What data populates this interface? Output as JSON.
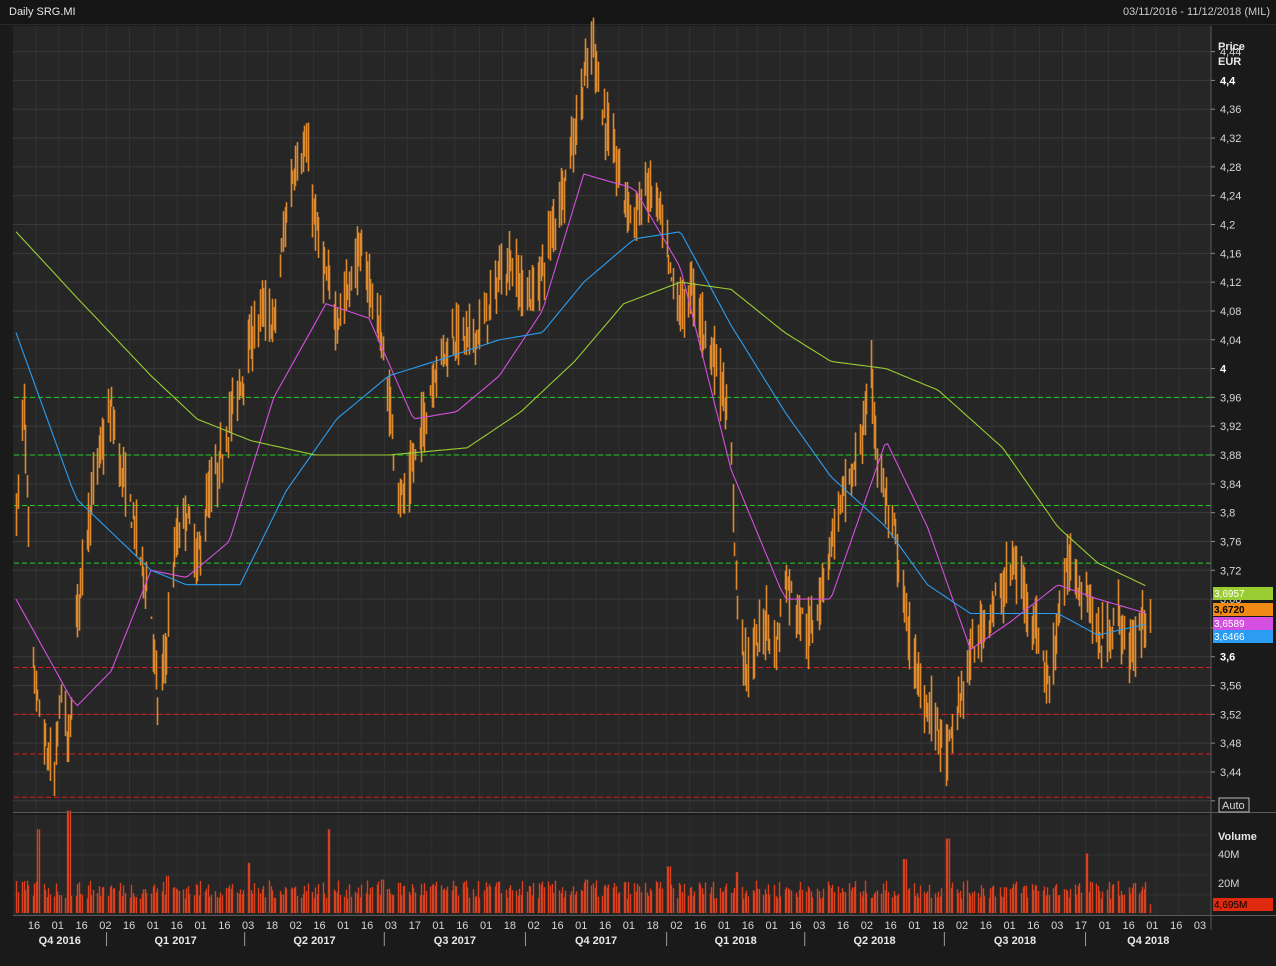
{
  "header": {
    "title": "Daily SRG.MI",
    "range": "03/11/2016 - 11/12/2018 (MIL)"
  },
  "price_axis": {
    "title_line1": "Price",
    "title_line2": "EUR",
    "auto_label": "Auto",
    "ticks": [
      "4,44",
      "4,4",
      "4,36",
      "4,32",
      "4,28",
      "4,24",
      "4,2",
      "4,16",
      "4,12",
      "4,08",
      "4,04",
      "4",
      "3,96",
      "3,92",
      "3,88",
      "3,84",
      "3,8",
      "3,76",
      "3,72",
      "3,68",
      "3,64",
      "3,6",
      "3,56",
      "3,52",
      "3,48",
      "3,44",
      "3,4"
    ],
    "bold_ticks": [
      "4,4",
      "4",
      "3,6"
    ]
  },
  "volume_axis": {
    "title": "Volume",
    "ticks": [
      "40M",
      "20M"
    ]
  },
  "time_axis": {
    "day_ticks": [
      "16",
      "01",
      "16",
      "02",
      "16",
      "01",
      "16",
      "01",
      "16",
      "03",
      "18",
      "02",
      "16",
      "01",
      "16",
      "03",
      "17",
      "01",
      "16",
      "01",
      "18",
      "02",
      "16",
      "01",
      "16",
      "01",
      "18",
      "02",
      "16",
      "01",
      "16",
      "01",
      "16",
      "03",
      "16",
      "02",
      "16",
      "01",
      "18",
      "02",
      "16",
      "01",
      "16",
      "03",
      "17",
      "01",
      "16",
      "01",
      "16",
      "03"
    ],
    "quarters": [
      "Q4 2016",
      "Q1 2017",
      "Q2 2017",
      "Q3 2017",
      "Q4 2017",
      "Q1 2018",
      "Q2 2018",
      "Q3 2018",
      "Q4 2018"
    ]
  },
  "colors": {
    "bars": "#e08a2e",
    "ma_short": "#d44fe0",
    "ma_mid": "#2a9df2",
    "ma_long": "#9acd32",
    "support": "#d42020",
    "resistance": "#22cc22",
    "volume": "#d8401e"
  },
  "chart_data": [
    {
      "type": "line",
      "subtype": "ohlc-bars",
      "title": "Daily SRG.MI",
      "date_range": "03/11/2016 - 11/12/2018",
      "currency": "EUR",
      "ylim": [
        3.39,
        4.47
      ],
      "price_path": [
        [
          "2016-11-03",
          3.8
        ],
        [
          "2016-11-08",
          3.95
        ],
        [
          "2016-11-14",
          3.58
        ],
        [
          "2016-11-21",
          3.48
        ],
        [
          "2016-11-28",
          3.43
        ],
        [
          "2016-12-02",
          3.56
        ],
        [
          "2016-12-07",
          3.47
        ],
        [
          "2016-12-12",
          3.65
        ],
        [
          "2016-12-19",
          3.78
        ],
        [
          "2016-12-27",
          3.88
        ],
        [
          "2017-01-04",
          3.94
        ],
        [
          "2017-01-10",
          3.86
        ],
        [
          "2017-01-17",
          3.8
        ],
        [
          "2017-01-23",
          3.74
        ],
        [
          "2017-01-30",
          3.66
        ],
        [
          "2017-02-03",
          3.53
        ],
        [
          "2017-02-08",
          3.6
        ],
        [
          "2017-02-15",
          3.76
        ],
        [
          "2017-02-22",
          3.8
        ],
        [
          "2017-03-01",
          3.73
        ],
        [
          "2017-03-08",
          3.82
        ],
        [
          "2017-03-15",
          3.86
        ],
        [
          "2017-03-22",
          3.93
        ],
        [
          "2017-03-29",
          3.98
        ],
        [
          "2017-04-05",
          4.04
        ],
        [
          "2017-04-12",
          4.08
        ],
        [
          "2017-04-20",
          4.06
        ],
        [
          "2017-04-28",
          4.22
        ],
        [
          "2017-05-04",
          4.29
        ],
        [
          "2017-05-11",
          4.3
        ],
        [
          "2017-05-17",
          4.2
        ],
        [
          "2017-05-24",
          4.12
        ],
        [
          "2017-05-31",
          4.07
        ],
        [
          "2017-06-07",
          4.11
        ],
        [
          "2017-06-14",
          4.16
        ],
        [
          "2017-06-21",
          4.12
        ],
        [
          "2017-06-28",
          4.05
        ],
        [
          "2017-07-04",
          3.95
        ],
        [
          "2017-07-10",
          3.84
        ],
        [
          "2017-07-14",
          3.81
        ],
        [
          "2017-07-20",
          3.87
        ],
        [
          "2017-07-27",
          3.93
        ],
        [
          "2017-08-03",
          4.0
        ],
        [
          "2017-08-10",
          4.03
        ],
        [
          "2017-08-17",
          4.05
        ],
        [
          "2017-08-24",
          4.04
        ],
        [
          "2017-08-31",
          4.05
        ],
        [
          "2017-09-07",
          4.08
        ],
        [
          "2017-09-14",
          4.13
        ],
        [
          "2017-09-21",
          4.15
        ],
        [
          "2017-09-28",
          4.11
        ],
        [
          "2017-10-05",
          4.1
        ],
        [
          "2017-10-12",
          4.14
        ],
        [
          "2017-10-19",
          4.2
        ],
        [
          "2017-10-26",
          4.26
        ],
        [
          "2017-11-02",
          4.33
        ],
        [
          "2017-11-08",
          4.4
        ],
        [
          "2017-11-14",
          4.45
        ],
        [
          "2017-11-20",
          4.36
        ],
        [
          "2017-11-27",
          4.3
        ],
        [
          "2017-12-04",
          4.24
        ],
        [
          "2017-12-11",
          4.21
        ],
        [
          "2017-12-18",
          4.25
        ],
        [
          "2017-12-26",
          4.23
        ],
        [
          "2018-01-03",
          4.13
        ],
        [
          "2018-01-10",
          4.08
        ],
        [
          "2018-01-17",
          4.11
        ],
        [
          "2018-01-24",
          4.06
        ],
        [
          "2018-01-31",
          4.02
        ],
        [
          "2018-02-07",
          3.97
        ],
        [
          "2018-02-12",
          3.86
        ],
        [
          "2018-02-16",
          3.67
        ],
        [
          "2018-02-22",
          3.58
        ],
        [
          "2018-03-01",
          3.62
        ],
        [
          "2018-03-07",
          3.65
        ],
        [
          "2018-03-13",
          3.61
        ],
        [
          "2018-03-19",
          3.71
        ],
        [
          "2018-03-26",
          3.67
        ],
        [
          "2018-04-04",
          3.63
        ],
        [
          "2018-04-11",
          3.69
        ],
        [
          "2018-04-18",
          3.76
        ],
        [
          "2018-04-25",
          3.82
        ],
        [
          "2018-05-02",
          3.85
        ],
        [
          "2018-05-09",
          3.92
        ],
        [
          "2018-05-14",
          3.99
        ],
        [
          "2018-05-18",
          3.88
        ],
        [
          "2018-05-24",
          3.81
        ],
        [
          "2018-05-30",
          3.76
        ],
        [
          "2018-06-06",
          3.65
        ],
        [
          "2018-06-13",
          3.57
        ],
        [
          "2018-06-20",
          3.53
        ],
        [
          "2018-06-27",
          3.5
        ],
        [
          "2018-07-02",
          3.46
        ],
        [
          "2018-07-06",
          3.49
        ],
        [
          "2018-07-12",
          3.55
        ],
        [
          "2018-07-18",
          3.6
        ],
        [
          "2018-07-25",
          3.64
        ],
        [
          "2018-08-01",
          3.67
        ],
        [
          "2018-08-08",
          3.69
        ],
        [
          "2018-08-14",
          3.73
        ],
        [
          "2018-08-20",
          3.7
        ],
        [
          "2018-08-27",
          3.66
        ],
        [
          "2018-09-03",
          3.6
        ],
        [
          "2018-09-07",
          3.55
        ],
        [
          "2018-09-13",
          3.66
        ],
        [
          "2018-09-20",
          3.73
        ],
        [
          "2018-09-27",
          3.7
        ],
        [
          "2018-10-03",
          3.68
        ],
        [
          "2018-10-09",
          3.62
        ],
        [
          "2018-10-16",
          3.63
        ],
        [
          "2018-10-22",
          3.66
        ],
        [
          "2018-10-29",
          3.6
        ],
        [
          "2018-11-05",
          3.64
        ],
        [
          "2018-11-12",
          3.672
        ]
      ],
      "moving_averages": [
        {
          "color": "magenta",
          "path": [
            [
              "2016-11-03",
              3.68
            ],
            [
              "2016-12-12",
              3.53
            ],
            [
              "2017-01-04",
              3.58
            ],
            [
              "2017-01-30",
              3.72
            ],
            [
              "2017-02-22",
              3.71
            ],
            [
              "2017-03-22",
              3.76
            ],
            [
              "2017-04-20",
              3.96
            ],
            [
              "2017-05-24",
              4.09
            ],
            [
              "2017-06-21",
              4.07
            ],
            [
              "2017-07-20",
              3.93
            ],
            [
              "2017-08-17",
              3.94
            ],
            [
              "2017-09-14",
              3.99
            ],
            [
              "2017-10-12",
              4.08
            ],
            [
              "2017-11-08",
              4.27
            ],
            [
              "2017-12-11",
              4.25
            ],
            [
              "2018-01-10",
              4.14
            ],
            [
              "2018-02-12",
              3.86
            ],
            [
              "2018-03-19",
              3.68
            ],
            [
              "2018-04-18",
              3.68
            ],
            [
              "2018-05-24",
              3.9
            ],
            [
              "2018-06-20",
              3.78
            ],
            [
              "2018-07-18",
              3.61
            ],
            [
              "2018-08-14",
              3.65
            ],
            [
              "2018-09-13",
              3.7
            ],
            [
              "2018-10-09",
              3.68
            ],
            [
              "2018-11-12",
              3.6589
            ]
          ]
        },
        {
          "color": "blue",
          "path": [
            [
              "2016-11-03",
              4.05
            ],
            [
              "2016-12-12",
              3.82
            ],
            [
              "2017-01-30",
              3.72
            ],
            [
              "2017-02-22",
              3.7
            ],
            [
              "2017-03-29",
              3.7
            ],
            [
              "2017-04-28",
              3.83
            ],
            [
              "2017-05-31",
              3.93
            ],
            [
              "2017-07-04",
              3.99
            ],
            [
              "2017-08-03",
              4.01
            ],
            [
              "2017-09-14",
              4.04
            ],
            [
              "2017-10-12",
              4.05
            ],
            [
              "2017-11-08",
              4.12
            ],
            [
              "2017-12-11",
              4.18
            ],
            [
              "2018-01-10",
              4.19
            ],
            [
              "2018-02-12",
              4.06
            ],
            [
              "2018-03-19",
              3.94
            ],
            [
              "2018-04-18",
              3.85
            ],
            [
              "2018-05-24",
              3.78
            ],
            [
              "2018-06-20",
              3.7
            ],
            [
              "2018-07-18",
              3.66
            ],
            [
              "2018-08-14",
              3.66
            ],
            [
              "2018-09-13",
              3.66
            ],
            [
              "2018-10-09",
              3.63
            ],
            [
              "2018-11-12",
              3.6466
            ]
          ]
        },
        {
          "color": "green",
          "path": [
            [
              "2016-11-03",
              4.19
            ],
            [
              "2016-12-12",
              4.1
            ],
            [
              "2017-01-30",
              3.99
            ],
            [
              "2017-03-01",
              3.93
            ],
            [
              "2017-04-05",
              3.9
            ],
            [
              "2017-05-17",
              3.88
            ],
            [
              "2017-07-04",
              3.88
            ],
            [
              "2017-08-24",
              3.89
            ],
            [
              "2017-09-28",
              3.94
            ],
            [
              "2017-11-02",
              4.01
            ],
            [
              "2017-12-04",
              4.09
            ],
            [
              "2018-01-10",
              4.12
            ],
            [
              "2018-02-12",
              4.11
            ],
            [
              "2018-03-19",
              4.05
            ],
            [
              "2018-04-18",
              4.01
            ],
            [
              "2018-05-24",
              4.0
            ],
            [
              "2018-06-27",
              3.97
            ],
            [
              "2018-08-08",
              3.89
            ],
            [
              "2018-09-13",
              3.78
            ],
            [
              "2018-10-09",
              3.73
            ],
            [
              "2018-11-12",
              3.6957
            ]
          ]
        }
      ],
      "resistance_levels": [
        3.96,
        3.88,
        3.81,
        3.73
      ],
      "support_levels": [
        3.585,
        3.52,
        3.465,
        3.405
      ],
      "last_values": {
        "close": "3,6720",
        "ma_green": "3,6957",
        "ma_magenta": "3,6589",
        "ma_blue": "3,6466",
        "volume": "4,695M"
      }
    },
    {
      "type": "bar",
      "title": "Volume",
      "ylim": [
        0,
        50
      ],
      "unit": "M",
      "spikes": [
        [
          "2016-11-18",
          45
        ],
        [
          "2016-12-07",
          55
        ],
        [
          "2017-02-10",
          20
        ],
        [
          "2017-04-03",
          27
        ],
        [
          "2017-05-26",
          45
        ],
        [
          "2017-06-30",
          18
        ],
        [
          "2017-11-10",
          18
        ],
        [
          "2018-01-02",
          25
        ],
        [
          "2018-02-16",
          22
        ],
        [
          "2018-06-05",
          29
        ],
        [
          "2018-07-03",
          40
        ],
        [
          "2018-10-01",
          32
        ]
      ],
      "typical": 14,
      "last": 4.695
    }
  ]
}
